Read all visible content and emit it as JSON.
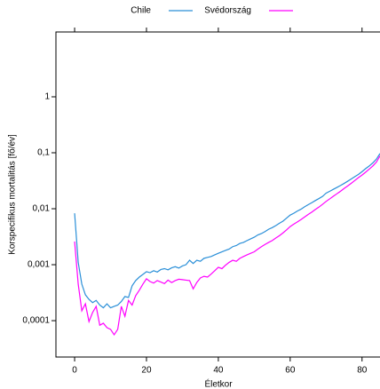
{
  "chart_data": {
    "type": "line",
    "log_y": true,
    "x_label": "Életkor",
    "y_label": "Korspecifikus mortalitás [fő/év]",
    "x": [
      0,
      1,
      2,
      3,
      4,
      5,
      6,
      7,
      8,
      9,
      10,
      11,
      12,
      13,
      14,
      15,
      16,
      17,
      18,
      19,
      20,
      21,
      22,
      23,
      24,
      25,
      26,
      27,
      28,
      29,
      30,
      31,
      32,
      33,
      34,
      35,
      36,
      37,
      38,
      39,
      40,
      41,
      42,
      43,
      44,
      45,
      46,
      47,
      48,
      49,
      50,
      51,
      52,
      53,
      54,
      55,
      56,
      57,
      58,
      59,
      60,
      61,
      62,
      63,
      64,
      65,
      66,
      67,
      68,
      69,
      70,
      71,
      72,
      73,
      74,
      75,
      76,
      77,
      78,
      79,
      80,
      81,
      82,
      83,
      84,
      85
    ],
    "series": [
      {
        "name": "Chile",
        "color": "#2a8fd8",
        "values": [
          0.0083,
          0.0011,
          0.00045,
          0.00029,
          0.00024,
          0.00021,
          0.00023,
          0.00019,
          0.00017,
          0.0002,
          0.00017,
          0.00018,
          0.00019,
          0.00022,
          0.00027,
          0.00026,
          0.00042,
          0.00052,
          0.0006,
          0.00067,
          0.00075,
          0.00072,
          0.00078,
          0.00074,
          0.00082,
          0.00085,
          0.00081,
          0.00088,
          0.00092,
          0.00087,
          0.00095,
          0.001,
          0.0012,
          0.00105,
          0.0012,
          0.00115,
          0.0013,
          0.00135,
          0.0014,
          0.0015,
          0.0016,
          0.0017,
          0.0018,
          0.0019,
          0.0021,
          0.0022,
          0.0024,
          0.0025,
          0.0027,
          0.0029,
          0.0031,
          0.0034,
          0.0036,
          0.0039,
          0.0043,
          0.0046,
          0.005,
          0.0055,
          0.006,
          0.0068,
          0.0077,
          0.0083,
          0.0091,
          0.0098,
          0.0108,
          0.0118,
          0.0128,
          0.014,
          0.0152,
          0.0166,
          0.019,
          0.0205,
          0.0222,
          0.024,
          0.026,
          0.0283,
          0.031,
          0.034,
          0.0375,
          0.041,
          0.046,
          0.052,
          0.058,
          0.066,
          0.077,
          0.097
        ]
      },
      {
        "name": "Svédország",
        "color": "#ff00ff",
        "values": [
          0.0026,
          0.00045,
          0.00015,
          0.0002,
          9.6e-05,
          0.00014,
          0.00018,
          8.3e-05,
          9e-05,
          7.5e-05,
          7e-05,
          5.6e-05,
          7e-05,
          0.00018,
          0.00012,
          0.00023,
          0.00019,
          0.00028,
          0.00035,
          0.00045,
          0.00056,
          0.0005,
          0.00047,
          0.00052,
          0.00049,
          0.00046,
          0.00053,
          0.00048,
          0.00052,
          0.00055,
          0.00054,
          0.00053,
          0.00052,
          0.00037,
          0.00048,
          0.00058,
          0.00062,
          0.0006,
          0.00068,
          0.00078,
          0.0009,
          0.00085,
          0.00098,
          0.0011,
          0.0012,
          0.00115,
          0.0013,
          0.0014,
          0.0015,
          0.0016,
          0.0017,
          0.0019,
          0.0021,
          0.0023,
          0.0025,
          0.0027,
          0.003,
          0.0033,
          0.0037,
          0.0042,
          0.0048,
          0.0053,
          0.0058,
          0.0064,
          0.0071,
          0.0079,
          0.0087,
          0.0097,
          0.0107,
          0.012,
          0.0135,
          0.015,
          0.0167,
          0.0185,
          0.0205,
          0.023,
          0.0255,
          0.0285,
          0.032,
          0.036,
          0.04,
          0.045,
          0.051,
          0.058,
          0.068,
          0.088
        ]
      }
    ],
    "xlim": [
      -5.2,
      85
    ],
    "xticks": [
      0,
      20,
      40,
      60,
      80
    ],
    "ylim": [
      2.24e-05,
      14.4
    ],
    "yticks": [
      {
        "value": 0.0001,
        "label": "0,0001"
      },
      {
        "value": 0.001,
        "label": "0,001"
      },
      {
        "value": 0.01,
        "label": "0,01"
      },
      {
        "value": 0.1,
        "label": "0,1"
      },
      1
    ],
    "legend": "top"
  }
}
